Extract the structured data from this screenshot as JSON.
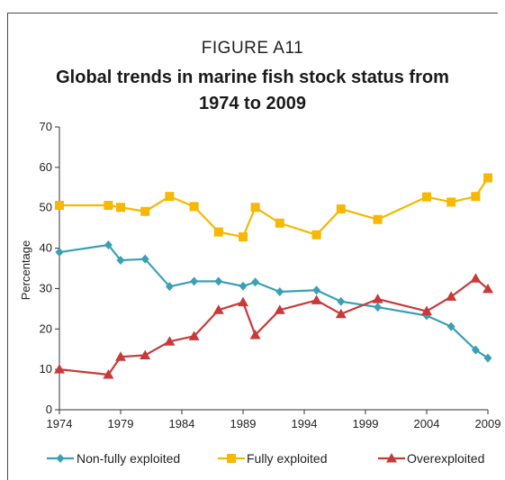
{
  "figure_label": "FIGURE A11",
  "title_line1": "Global trends in marine fish stock status from",
  "title_line2": "1974 to 2009",
  "chart_data": {
    "type": "line",
    "title": "Global trends in marine fish stock status from 1974 to 2009",
    "xlabel": "",
    "ylabel": "Percentage",
    "xlim": [
      1974,
      2009
    ],
    "ylim": [
      0,
      70
    ],
    "x_ticks": [
      "1974",
      "1979",
      "1984",
      "1989",
      "1994",
      "1999",
      "2004",
      "2009"
    ],
    "y_ticks": [
      "0",
      "10",
      "20",
      "30",
      "40",
      "50",
      "60",
      "70"
    ],
    "grid": false,
    "legend_position": "bottom",
    "series": [
      {
        "name": "Non-fully exploited",
        "color": "#3aa0b4",
        "marker": "diamond",
        "x": [
          1974,
          1978,
          1979,
          1981,
          1983,
          1985,
          1987,
          1989,
          1990,
          1992,
          1995,
          1997,
          2000,
          2004,
          2006,
          2008,
          2009
        ],
        "y": [
          39,
          40.8,
          37,
          37.3,
          30.5,
          31.8,
          31.8,
          30.6,
          31.6,
          29.2,
          29.6,
          26.8,
          25.4,
          23.3,
          20.6,
          14.8,
          12.8
        ]
      },
      {
        "name": "Fully exploited",
        "color": "#f6b800",
        "marker": "square",
        "x": [
          1974,
          1978,
          1979,
          1981,
          1983,
          1985,
          1987,
          1989,
          1990,
          1992,
          1995,
          1997,
          2000,
          2004,
          2006,
          2008,
          2009
        ],
        "y": [
          50.6,
          50.6,
          50.1,
          49.1,
          52.8,
          50.3,
          44,
          42.8,
          50.1,
          46.2,
          43.3,
          49.7,
          47.1,
          52.7,
          51.4,
          52.8,
          57.4
        ]
      },
      {
        "name": "Overexploited",
        "color": "#c83a3a",
        "marker": "triangle",
        "x": [
          1974,
          1978,
          1979,
          1981,
          1983,
          1985,
          1987,
          1989,
          1990,
          1992,
          1995,
          1997,
          2000,
          2004,
          2006,
          2008,
          2009
        ],
        "y": [
          10,
          8.7,
          13.1,
          13.5,
          16.9,
          18.2,
          24.7,
          26.6,
          18.5,
          24.7,
          27.1,
          23.7,
          27.4,
          24.4,
          28,
          32.5,
          29.9
        ]
      }
    ]
  }
}
